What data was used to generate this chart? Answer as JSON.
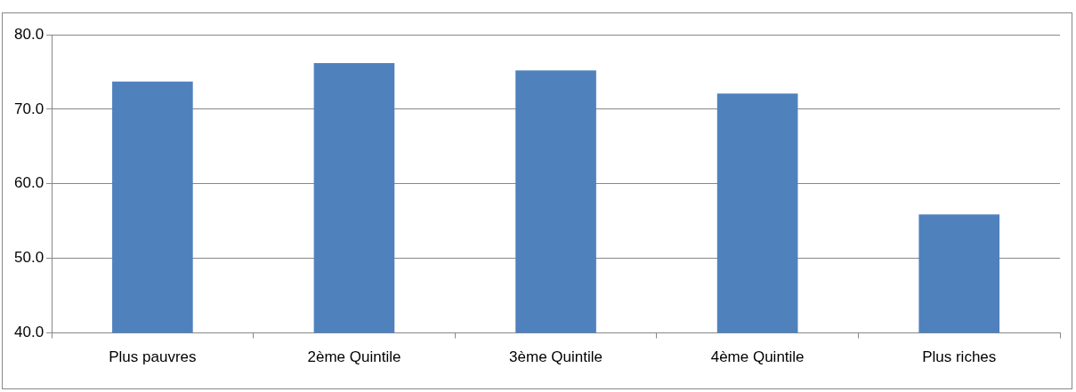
{
  "chart_data": {
    "type": "bar",
    "categories": [
      "Plus pauvres",
      "2ème Quintile",
      "3ème Quintile",
      "4ème Quintile",
      "Plus riches"
    ],
    "values": [
      73.7,
      76.2,
      75.2,
      72.1,
      55.9
    ],
    "color": "#4f81bd",
    "ylim": [
      40,
      80
    ],
    "yticks": [
      {
        "value": 40,
        "label": "40.0"
      },
      {
        "value": 50,
        "label": "50.0"
      },
      {
        "value": 60,
        "label": "60.0"
      },
      {
        "value": 70,
        "label": "70.0"
      },
      {
        "value": 80,
        "label": "80.0"
      }
    ],
    "grid": "y",
    "legend": false
  }
}
